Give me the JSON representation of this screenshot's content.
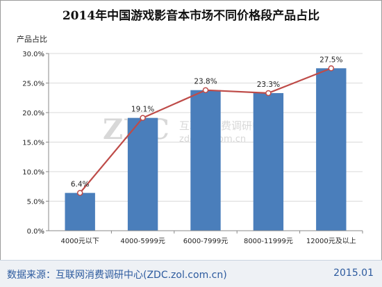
{
  "chart_data": {
    "type": "bar",
    "title": "2014年中国游戏影音本市场不同价格段产品占比",
    "xlabel": "",
    "ylabel": "产品占比",
    "categories": [
      "4000元以下",
      "4000-5999元",
      "6000-7999元",
      "8000-11999元",
      "12000元及以上"
    ],
    "values": [
      6.4,
      19.1,
      23.8,
      23.3,
      27.5
    ],
    "value_labels": [
      "6.4%",
      "19.1%",
      "23.8%",
      "23.3%",
      "27.5%"
    ],
    "overlay_line": true,
    "ylim": [
      0,
      30
    ],
    "yticks": [
      "0.0%",
      "5.0%",
      "10.0%",
      "15.0%",
      "20.0%",
      "25.0%",
      "30.0%"
    ],
    "grid": true,
    "colors": {
      "bar": "#4a7ebb",
      "line": "#be4b48",
      "marker_fill": "#ffffff"
    }
  },
  "watermark": {
    "logo": "ZDC",
    "cn": "互联网消费调研中心",
    "url": "zdc.zol.com.cn"
  },
  "footer": {
    "source": "数据来源：互联网消费调研中心(ZDC.zol.com.cn)",
    "date": "2015.01"
  }
}
